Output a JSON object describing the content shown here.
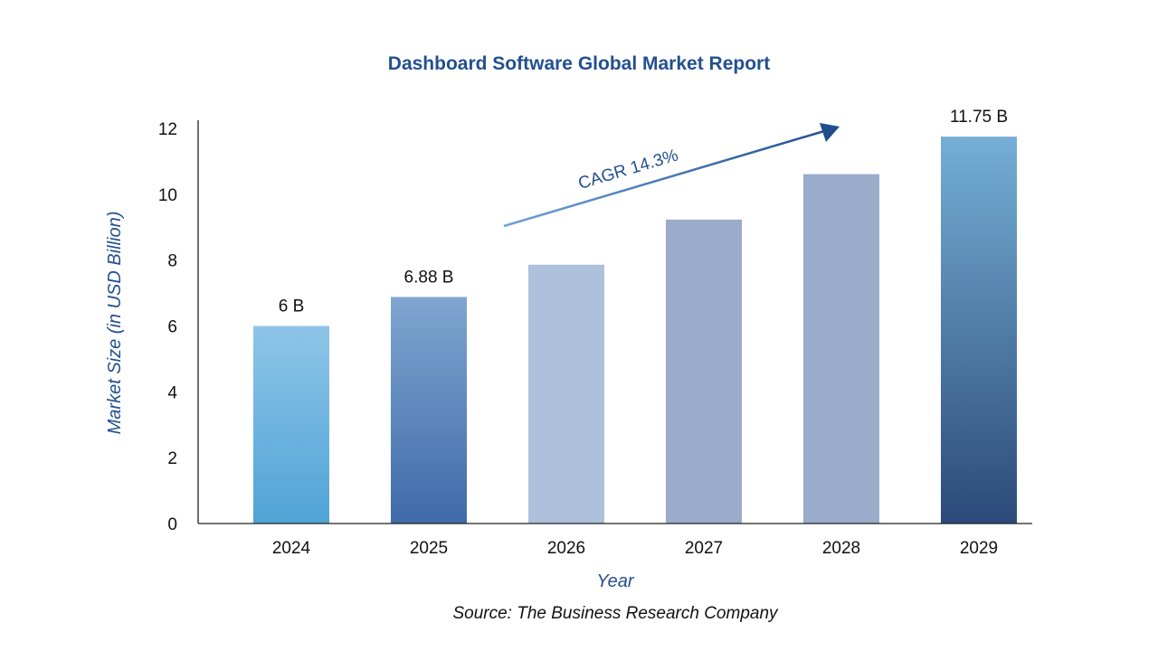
{
  "chart_data": {
    "type": "bar",
    "title": "Dashboard Software Global Market Report",
    "xlabel": "Year",
    "ylabel": "Market Size (in USD Billion)",
    "categories": [
      "2024",
      "2025",
      "2026",
      "2027",
      "2028",
      "2029"
    ],
    "values": [
      6.0,
      6.88,
      7.86,
      9.23,
      10.61,
      11.75
    ],
    "data_labels": [
      "6 B",
      "6.88 B",
      "",
      "",
      "",
      "11.75 B"
    ],
    "ylim": [
      0,
      12
    ],
    "yticks": [
      0,
      2,
      4,
      6,
      8,
      10,
      12
    ],
    "grid": false,
    "annotation": "CAGR 14.3%",
    "source": "Source: The Business Research Company",
    "colors": {
      "title": "#23508f",
      "axis_title": "#23508f",
      "arrow_start": "#6fa3d6",
      "arrow_end": "#1f4e8f",
      "bars": [
        [
          "#8ec5e8",
          "#4fa3d6"
        ],
        [
          "#7fa6d0",
          "#3f6aa9"
        ],
        [
          "#adc0dc",
          "#adc0dc"
        ],
        [
          "#9aabcb",
          "#9aabcb"
        ],
        [
          "#9aabcb",
          "#9aabcb"
        ],
        [
          "#74aed6",
          "#2c4a7a"
        ]
      ]
    }
  }
}
